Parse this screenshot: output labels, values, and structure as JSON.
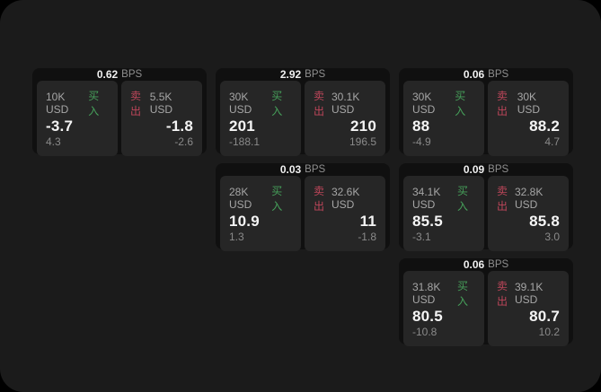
{
  "window": {
    "background": "#1b1b1b"
  },
  "colors": {
    "buy_green": "#46a05a",
    "sell_red": "#be465a",
    "card_bg": "#101010",
    "panel_bg": "#262626",
    "value_white": "#f5f5f5",
    "label_gray": "#a6a6a6"
  },
  "cards": [
    {
      "bps": "0.62",
      "unit": "BPS",
      "buy": {
        "amount": "10K USD",
        "tag": "买入",
        "price": "-3.7",
        "delta": "4.3"
      },
      "sell": {
        "tag": "卖出",
        "amount": "5.5K USD",
        "price": "-1.8",
        "delta": "-2.6"
      }
    },
    {
      "bps": "2.92",
      "unit": "BPS",
      "buy": {
        "amount": "30K USD",
        "tag": "买入",
        "price": "201",
        "delta": "-188.1"
      },
      "sell": {
        "tag": "卖出",
        "amount": "30.1K USD",
        "price": "210",
        "delta": "196.5"
      }
    },
    {
      "bps": "0.06",
      "unit": "BPS",
      "buy": {
        "amount": "30K USD",
        "tag": "买入",
        "price": "88",
        "delta": "-4.9"
      },
      "sell": {
        "tag": "卖出",
        "amount": "30K USD",
        "price": "88.2",
        "delta": "4.7"
      }
    },
    {
      "bps": "0.03",
      "unit": "BPS",
      "buy": {
        "amount": "28K USD",
        "tag": "买入",
        "price": "10.9",
        "delta": "1.3"
      },
      "sell": {
        "tag": "卖出",
        "amount": "32.6K USD",
        "price": "11",
        "delta": "-1.8"
      }
    },
    {
      "bps": "0.09",
      "unit": "BPS",
      "buy": {
        "amount": "34.1K USD",
        "tag": "买入",
        "price": "85.5",
        "delta": "-3.1"
      },
      "sell": {
        "tag": "卖出",
        "amount": "32.8K USD",
        "price": "85.8",
        "delta": "3.0"
      }
    },
    {
      "bps": "0.06",
      "unit": "BPS",
      "buy": {
        "amount": "31.8K USD",
        "tag": "买入",
        "price": "80.5",
        "delta": "-10.8"
      },
      "sell": {
        "tag": "卖出",
        "amount": "39.1K USD",
        "price": "80.7",
        "delta": "10.2"
      }
    }
  ]
}
